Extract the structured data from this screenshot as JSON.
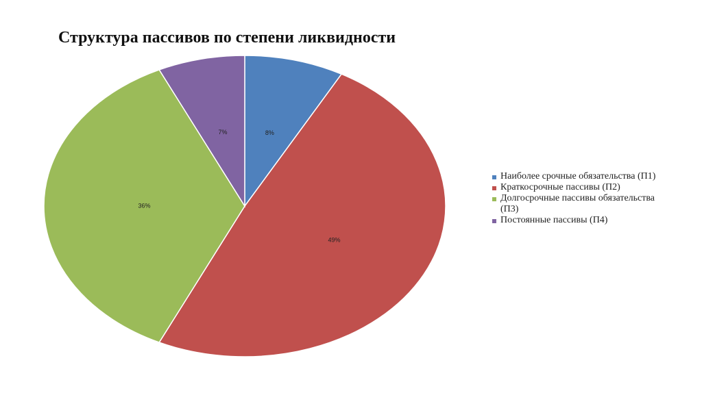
{
  "chart_data": {
    "type": "pie",
    "title": "Структура пассивов по степени ликвидности",
    "categories": [
      "Наиболее срочные обязательства (П1)",
      "Краткосрочные пассивы (П2)",
      "Долгосрочные пассивы обязательства (П3)",
      "Постоянные пассивы (П4)"
    ],
    "values": [
      8,
      49,
      36,
      7
    ],
    "value_labels": [
      "8%",
      "49%",
      "36%",
      "7%"
    ],
    "colors": [
      "#4f81bd",
      "#c0504d",
      "#9bbb59",
      "#8064a2"
    ],
    "legend": "right"
  }
}
